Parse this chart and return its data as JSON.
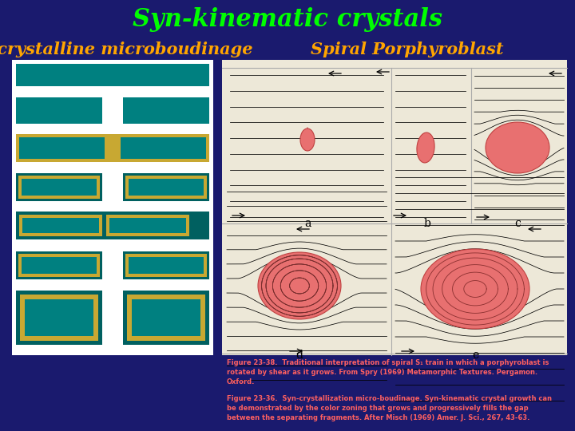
{
  "bg_color": "#1a1a6e",
  "title": "Syn-kinematic crystals",
  "title_color": "#00ff00",
  "title_fontsize": 22,
  "left_label": "Paracrystalline microboudinage",
  "right_label": "Spiral Porphyroblast",
  "label_color": "#ffa500",
  "label_fontsize": 15,
  "caption1_color": "#ff6060",
  "caption2_color": "#ff6060",
  "teal": "#008080",
  "gold": "#c8a832",
  "dark_teal": "#006060",
  "porph_face": "#e87070",
  "porph_edge": "#c04040"
}
